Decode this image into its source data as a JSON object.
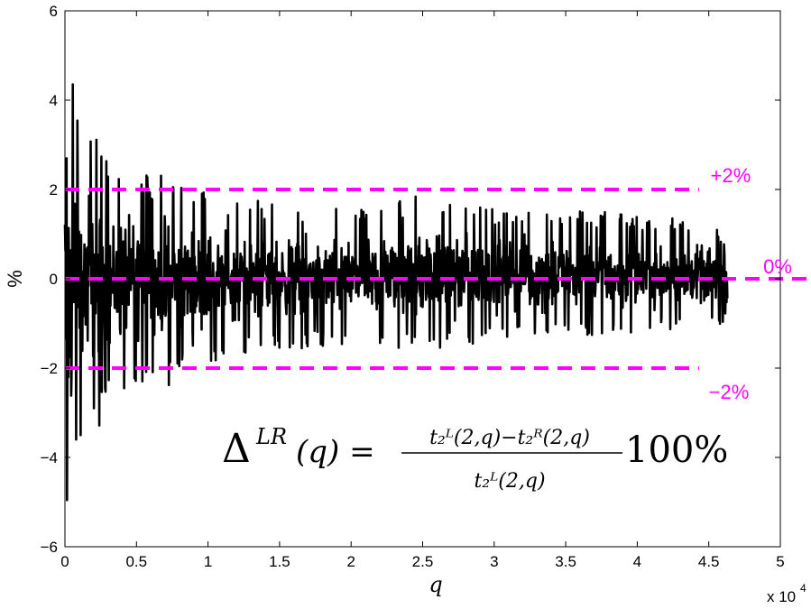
{
  "chart_data": {
    "type": "line",
    "xlabel": "q",
    "ylabel": "%",
    "xlim": [
      0,
      50000
    ],
    "ylim": [
      -6,
      6
    ],
    "x_exponent_label": "x 10",
    "x_exponent_power": "4",
    "x_tick_values": [
      0,
      5000,
      10000,
      15000,
      20000,
      25000,
      30000,
      35000,
      40000,
      45000,
      50000
    ],
    "x_ticks": [
      "0",
      "0.5",
      "1",
      "1.5",
      "2",
      "2.5",
      "3",
      "3.5",
      "4",
      "4.5",
      "5"
    ],
    "y_tick_values": [
      -6,
      -4,
      -2,
      0,
      2,
      4,
      6
    ],
    "y_ticks": [
      "−6",
      "−4",
      "−2",
      "0",
      "2",
      "4",
      "6"
    ],
    "grid": false,
    "series": [
      {
        "color": "#000000",
        "x_range": [
          0,
          46300
        ],
        "envelope": {
          "q": [
            0,
            500,
            1000,
            2000,
            3000,
            4000,
            5000,
            6000,
            7000,
            8000,
            9000,
            10000,
            12000,
            15000,
            20000,
            25000,
            30000,
            35000,
            40000,
            45000,
            46300
          ],
          "upper": [
            6.0,
            5.0,
            4.0,
            3.2,
            2.8,
            2.6,
            2.5,
            2.3,
            2.5,
            2.1,
            1.9,
            2.1,
            1.8,
            1.7,
            1.6,
            1.9,
            1.6,
            1.6,
            1.4,
            1.3,
            0.9
          ],
          "lower": [
            -6.0,
            -5.0,
            -4.0,
            -3.5,
            -3.0,
            -2.7,
            -2.5,
            -2.3,
            -2.6,
            -2.2,
            -1.9,
            -2.1,
            -1.8,
            -1.6,
            -1.5,
            -1.6,
            -1.4,
            -1.3,
            -1.2,
            -1.1,
            -1.0
          ]
        }
      }
    ],
    "reference_lines": [
      {
        "y": 2,
        "label": "+2%",
        "color": "#ff00ff",
        "style": "dashed"
      },
      {
        "y": 0,
        "label": "0%",
        "color": "#ff00ff",
        "style": "dashed"
      },
      {
        "y": -2,
        "label": "−2%",
        "color": "#ff00ff",
        "style": "dashed"
      }
    ],
    "annotation": {
      "lhs": "Δ",
      "lhs_sup": "LR",
      "lhs_arg": "(q) =",
      "numerator": "t₂ᴸ(2,q)−t₂ᴿ(2,q)",
      "denominator": "t₂ᴸ(2,q)",
      "suffix": "100%"
    }
  }
}
